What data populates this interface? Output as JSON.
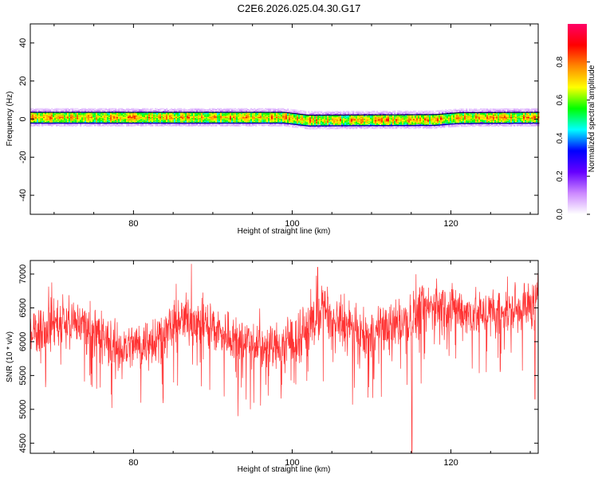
{
  "title": "C2E6.2026.025.04.30.G17",
  "chart_data": [
    {
      "type": "heatmap",
      "xlabel": "Height of straight line (km)",
      "ylabel": "Frequency (Hz)",
      "xlim": [
        67,
        131
      ],
      "ylim": [
        -50,
        50
      ],
      "x_ticks": [
        80,
        100,
        120
      ],
      "y_ticks": [
        -40,
        -20,
        0,
        20,
        40
      ],
      "colorbar": {
        "label": "Normalized spectral amplitude",
        "range": [
          0,
          1
        ],
        "ticks": [
          0.0,
          0.2,
          0.4,
          0.6,
          0.8
        ],
        "colors": [
          "#ffffff",
          "#cc88ff",
          "#6600ff",
          "#0000ff",
          "#00ffff",
          "#00ff00",
          "#ffff00",
          "#ff8800",
          "#ff0000",
          "#ff0066"
        ]
      },
      "band": {
        "center_hz": [
          {
            "x": 67,
            "y": 1.0
          },
          {
            "x": 99,
            "y": 1.0
          },
          {
            "x": 102,
            "y": -0.5
          },
          {
            "x": 118,
            "y": -0.2
          },
          {
            "x": 121,
            "y": 0.8
          },
          {
            "x": 131,
            "y": 1.0
          }
        ],
        "halfwidth_hz": 2.5,
        "halo_hz": 5.0,
        "peak_amplitude": 0.75
      }
    },
    {
      "type": "line",
      "xlabel": "Height of straight line (km)",
      "ylabel": "SNR (10 * v/v)",
      "xlim": [
        67,
        131
      ],
      "ylim": [
        4350,
        7200
      ],
      "x_ticks": [
        80,
        100,
        120
      ],
      "y_ticks": [
        4500,
        5000,
        5500,
        6000,
        6500,
        7000
      ],
      "color": "#ff3333",
      "trend": [
        {
          "x": 67,
          "y": 6150
        },
        {
          "x": 70,
          "y": 6300
        },
        {
          "x": 74,
          "y": 6250
        },
        {
          "x": 78,
          "y": 5900
        },
        {
          "x": 82,
          "y": 6000
        },
        {
          "x": 87,
          "y": 6350
        },
        {
          "x": 92,
          "y": 6100
        },
        {
          "x": 97,
          "y": 5900
        },
        {
          "x": 100,
          "y": 6000
        },
        {
          "x": 104,
          "y": 6450
        },
        {
          "x": 109,
          "y": 6050
        },
        {
          "x": 114,
          "y": 6300
        },
        {
          "x": 118,
          "y": 6550
        },
        {
          "x": 123,
          "y": 6400
        },
        {
          "x": 127,
          "y": 6450
        },
        {
          "x": 131,
          "y": 6550
        }
      ],
      "noise_amplitude": 320,
      "spikes": [
        {
          "x": 87.3,
          "y": 7150
        },
        {
          "x": 103.2,
          "y": 7100
        },
        {
          "x": 115.1,
          "y": 4350
        },
        {
          "x": 130.6,
          "y": 5150
        }
      ]
    }
  ]
}
